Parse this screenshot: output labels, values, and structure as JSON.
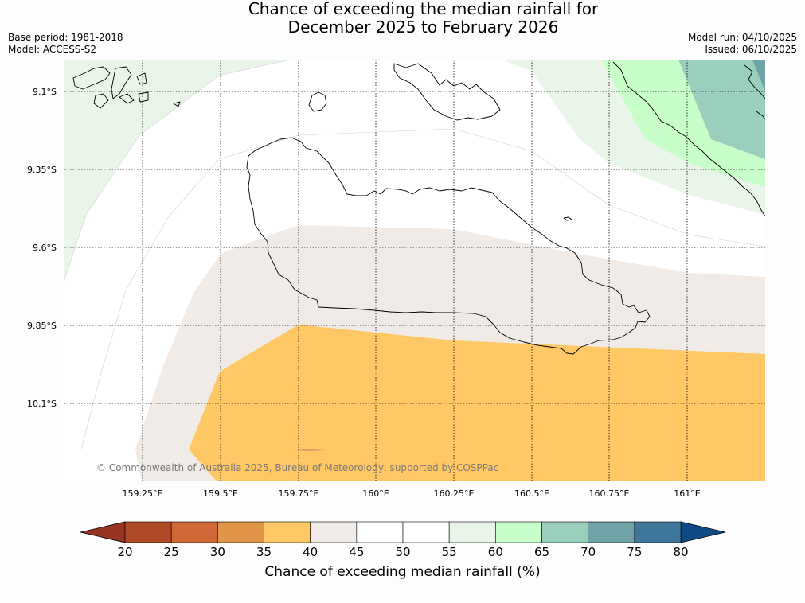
{
  "title_line1": "Chance of exceeding the median rainfall for",
  "title_line2": "December 2025 to February 2026",
  "meta_left": {
    "base_period": "Base period: 1981-2018",
    "model": "Model: ACCESS-S2"
  },
  "meta_right": {
    "model_run": "Model run: 04/10/2025",
    "issued": "Issued: 06/10/2025"
  },
  "latitude_labels": [
    "9.1°S",
    "9.35°S",
    "9.6°S",
    "9.85°S",
    "10.1°S"
  ],
  "longitude_labels": [
    "159.25°E",
    "159.5°E",
    "159.75°E",
    "160°E",
    "160.25°E",
    "160.5°E",
    "160.75°E",
    "161°E"
  ],
  "copyright": "© Commonwealth of Australia 2025, Bureau of Meteorology, supported by COSPPac",
  "colorbar": {
    "label": "Chance of exceeding median rainfall (%)",
    "ticks": [
      "20",
      "25",
      "30",
      "35",
      "40",
      "45",
      "50",
      "55",
      "60",
      "65",
      "70",
      "75",
      "80"
    ],
    "bin_colors": [
      "#b04a26",
      "#cf6836",
      "#e09448",
      "#ffc864",
      "#f0ebe6",
      "#ffffff",
      "#ffffff",
      "#e8f5e8",
      "#c8ffc8",
      "#9bcfbd",
      "#6fa3a8",
      "#3f779c"
    ],
    "under_color": "#973522",
    "over_color": "#0f4a87"
  },
  "categories": {
    "35_40": "#ffc864",
    "40_45": "#f0ebe6",
    "55_60": "#e8f5e8",
    "60_65": "#c8ffc8",
    "65_70": "#9bcfbd",
    "70_75": "#6fa3a8"
  }
}
